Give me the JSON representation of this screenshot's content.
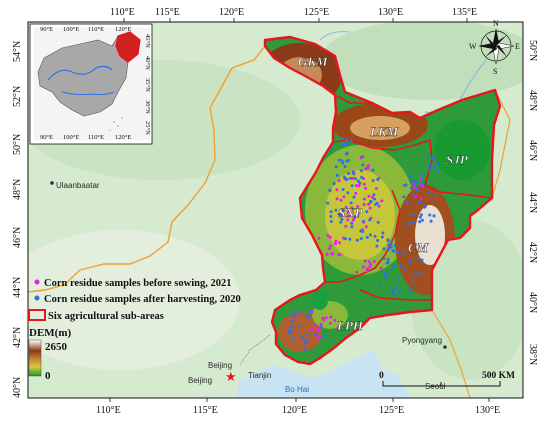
{
  "top_ticks": [
    "110°E",
    "115°E",
    "120°E",
    "125°E",
    "130°E",
    "135°E"
  ],
  "bottom_ticks": [
    "110°E",
    "115°E",
    "120°E",
    "125°E",
    "130°E"
  ],
  "left_ticks": [
    "54°N",
    "52°N",
    "50°N",
    "48°N",
    "46°N",
    "44°N",
    "42°N",
    "40°N"
  ],
  "right_ticks": [
    "50°N",
    "48°N",
    "46°N",
    "44°N",
    "42°N",
    "40°N",
    "38°N"
  ],
  "inset": {
    "top_ticks": [
      "90°E",
      "100°E",
      "110°E",
      "120°E"
    ],
    "bottom_ticks": [
      "90°E",
      "100°E",
      "110°E",
      "120°E"
    ],
    "right_ticks": [
      "45°N",
      "40°N",
      "35°N",
      "30°N",
      "25°N"
    ]
  },
  "regions": [
    "GKM",
    "LKM",
    "SJP",
    "SNP",
    "CM",
    "LPH"
  ],
  "places": {
    "ulaanbaatar": "Ulaanbaatar",
    "beijing_top": "Beijing",
    "beijing": "Beijing",
    "tianjin": "Tianjin",
    "bohai": "Bo Hai",
    "pyongyang": "Pyongyang",
    "seoul": "Seoul"
  },
  "legend": {
    "before": "Corn residue samples before sowing, 2021",
    "after": "Corn residue samples after harvesting, 2020",
    "subareas": "Six agricultural sub-areas"
  },
  "dem": {
    "title": "DEM(m)",
    "max": "2650",
    "min": "0"
  },
  "scale": {
    "zero": "0",
    "end": "500 KM"
  },
  "compass": {
    "n": "N",
    "s": "S",
    "e": "E",
    "w": "W"
  },
  "colors": {
    "before_points": "#e81ee8",
    "after_points": "#2d6fe8",
    "boundary": "#e8141e",
    "border_orange": "#f0a030"
  }
}
